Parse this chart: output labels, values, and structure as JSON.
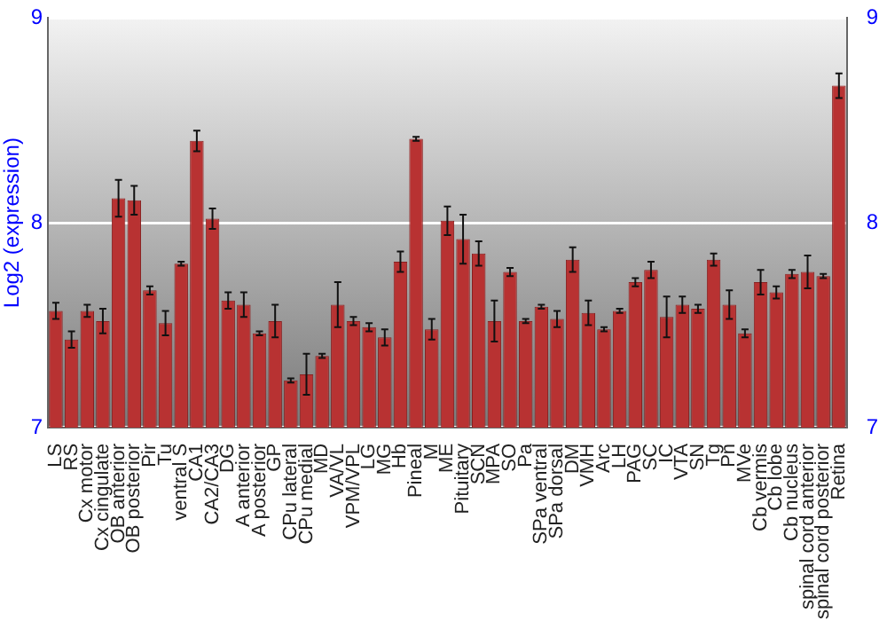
{
  "chart_data": {
    "type": "bar",
    "ylabel": "Log2 (expression)",
    "categories": [
      "LS",
      "RS",
      "Cx motor",
      "Cx cingulate",
      "OB anterior",
      "OB posterior",
      "Pir",
      "Tu",
      "ventral S",
      "CA1",
      "CA2/CA3",
      "DG",
      "A anterior",
      "A posterior",
      "GP",
      "CPu lateral",
      "CPu medial",
      "MD",
      "VA/VL",
      "VPM/VPL",
      "LG",
      "MG",
      "Hb",
      "Pineal",
      "M",
      "ME",
      "Pituitary",
      "SCN",
      "MPA",
      "SO",
      "Pa",
      "SPa ventral",
      "SPa dorsal",
      "DM",
      "VMH",
      "Arc",
      "LH",
      "PAG",
      "SC",
      "IC",
      "VTA",
      "SN",
      "Tg",
      "Pn",
      "MVe",
      "Cb vermis",
      "Cb lobe",
      "Cb nucleus",
      "spinal cord anterior",
      "spinal cord posterior",
      "Retina"
    ],
    "values": [
      7.57,
      7.43,
      7.57,
      7.52,
      8.12,
      8.11,
      7.67,
      7.51,
      7.8,
      8.4,
      8.02,
      7.62,
      7.6,
      7.46,
      7.52,
      7.23,
      7.26,
      7.35,
      7.6,
      7.52,
      7.49,
      7.44,
      7.81,
      8.41,
      7.48,
      8.01,
      7.92,
      7.85,
      7.52,
      7.76,
      7.52,
      7.59,
      7.53,
      7.82,
      7.56,
      7.48,
      7.57,
      7.71,
      7.77,
      7.54,
      7.6,
      7.58,
      7.82,
      7.6,
      7.46,
      7.71,
      7.66,
      7.75,
      7.76,
      7.74,
      8.67
    ],
    "errors": [
      0.04,
      0.04,
      0.03,
      0.06,
      0.09,
      0.07,
      0.02,
      0.06,
      0.01,
      0.05,
      0.05,
      0.04,
      0.06,
      0.01,
      0.08,
      0.01,
      0.1,
      0.01,
      0.11,
      0.02,
      0.02,
      0.04,
      0.05,
      0.01,
      0.05,
      0.07,
      0.12,
      0.06,
      0.1,
      0.02,
      0.01,
      0.01,
      0.04,
      0.06,
      0.06,
      0.01,
      0.01,
      0.02,
      0.04,
      0.1,
      0.04,
      0.02,
      0.03,
      0.07,
      0.02,
      0.06,
      0.03,
      0.02,
      0.08,
      0.01,
      0.06
    ],
    "color": "#b83232",
    "ylim": [
      7,
      9
    ],
    "yticks": [
      7,
      8,
      9
    ],
    "y2lim": [
      7,
      9
    ],
    "y2ticks": [
      7,
      8,
      9
    ],
    "grid": "y",
    "legend": false
  }
}
